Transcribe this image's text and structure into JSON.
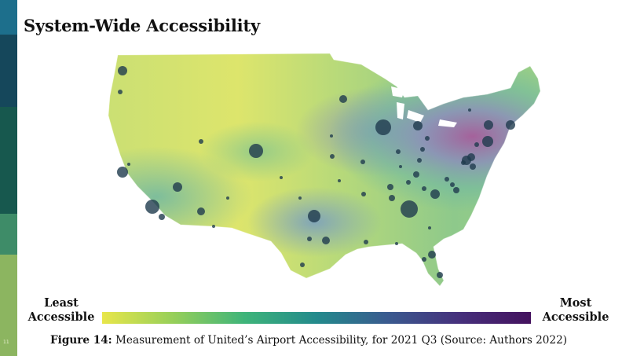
{
  "slide": {
    "title": "System-Wide Accessibility",
    "page_number": "11"
  },
  "sidebar_colors": [
    "#1d6f8c",
    "#15475b",
    "#17584e",
    "#3e8c68",
    "#8cb560"
  ],
  "legend": {
    "low_line1": "Least",
    "low_line2": "Accessible",
    "high_line1": "Most",
    "high_line2": "Accessible",
    "gradient_colors": [
      "#e8e64a",
      "#96cf5a",
      "#3eb47a",
      "#238a8c",
      "#3a5a8f",
      "#46307c",
      "#44125e"
    ]
  },
  "caption": {
    "label": "Figure 14:",
    "text": " Measurement of United’s Airport Accessibility, for 2021 Q3 (Source: Authors 2022)"
  },
  "map": {
    "colors": {
      "low": "#e4e56a",
      "mid_low": "#b4d978",
      "mid": "#8ec98b",
      "mid_high": "#6fb7a3",
      "high": "#8a8fba",
      "very_high": "#a65c9c",
      "airport": "#1f3b4d"
    }
  }
}
